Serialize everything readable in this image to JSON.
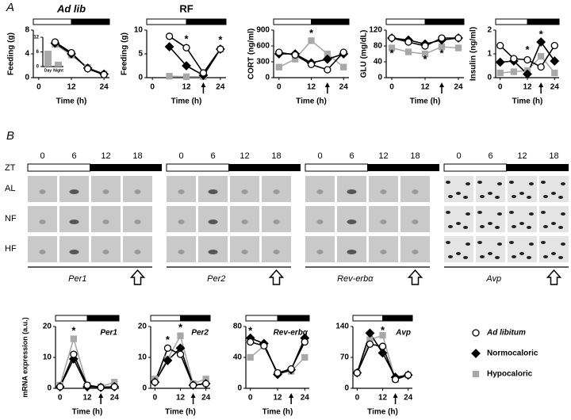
{
  "panel_labels": [
    "A",
    "B"
  ],
  "legend": [
    {
      "name": "Ad libitum",
      "shape": "circle",
      "color": "#ffffff",
      "line": "#000000"
    },
    {
      "name": "Normocaloric",
      "shape": "diamond",
      "color": "#000000",
      "line": "#000000"
    },
    {
      "name": "Hypocaloric",
      "shape": "square",
      "color": "#a8a8a8",
      "line": "#a8a8a8"
    }
  ],
  "micrographs": {
    "zt_label": "ZT",
    "columns": [
      0,
      6,
      12,
      18
    ],
    "rows": [
      "AL",
      "NF",
      "HF"
    ],
    "genes": [
      "Per1",
      "Per2",
      "Rev-erbα",
      "Avp"
    ]
  },
  "chart_data": [
    {
      "type": "line",
      "title": "Ad lib",
      "ylabel": "Feeding (g)",
      "xlabel": "Time (h)",
      "x": [
        6,
        12,
        18,
        24
      ],
      "xlim": [
        -2,
        26
      ],
      "xticks": [
        0,
        12,
        24
      ],
      "ylim": [
        0,
        8
      ],
      "yticks": [
        0,
        4,
        8
      ],
      "light_dark": true,
      "series": [
        {
          "values": [
            6,
            4.2,
            1.5,
            0.5
          ]
        },
        {
          "values": [
            5.8,
            4,
            1.6,
            0.6
          ]
        },
        {
          "values": [
            5.6,
            3.8,
            1.7,
            0.6
          ]
        }
      ]
    },
    {
      "type": "bar",
      "categories": [
        "Day",
        "Night"
      ],
      "values": [
        6.5,
        2
      ],
      "color": "#a8a8a8",
      "ylim": [
        0,
        12
      ],
      "yticks": [
        0,
        6,
        12
      ]
    },
    {
      "type": "line",
      "title": "RF",
      "ylabel": "Feeding (g)",
      "xlabel": "Time (h)",
      "x": [
        6,
        12,
        18,
        24
      ],
      "xlim": [
        -2,
        26
      ],
      "xticks": [
        0,
        12,
        24
      ],
      "ylim": [
        0,
        10
      ],
      "yticks": [
        0,
        5,
        10
      ],
      "light_dark": true,
      "arrow_at": 18,
      "series": [
        {
          "values": [
            8.7,
            6.3,
            1,
            6
          ]
        },
        {
          "values": [
            6.5,
            2.5,
            0.5,
            6
          ]
        },
        {
          "values": [
            0.3,
            0.2,
            0.2,
            6
          ]
        }
      ],
      "annotations": [
        {
          "text": "*",
          "x": 12,
          "y": 8
        },
        {
          "text": "*",
          "x": 24,
          "y": 7.8
        }
      ]
    },
    {
      "type": "line",
      "ylabel": "CORT (ng/ml)",
      "xlabel": "Time (h)",
      "x": [
        0,
        6,
        12,
        18,
        24
      ],
      "xlim": [
        -2,
        26
      ],
      "xticks": [
        0,
        12,
        24
      ],
      "ylim": [
        0,
        900
      ],
      "yticks": [
        0,
        300,
        600,
        900
      ],
      "light_dark": true,
      "arrow_at": 18,
      "series": [
        {
          "values": [
            480,
            430,
            250,
            150,
            480
          ]
        },
        {
          "values": [
            450,
            450,
            280,
            350,
            450
          ]
        },
        {
          "values": [
            200,
            350,
            700,
            450,
            200
          ]
        }
      ],
      "annotations": [
        {
          "text": "*",
          "x": 12,
          "y": 830
        }
      ]
    },
    {
      "type": "line",
      "ylabel": "GLU (mg/dL)",
      "xlabel": "Time (h)",
      "x": [
        0,
        6,
        12,
        18,
        24
      ],
      "xlim": [
        -2,
        26
      ],
      "xticks": [
        0,
        12,
        24
      ],
      "ylim": [
        0,
        120
      ],
      "yticks": [
        0,
        40,
        80,
        120
      ],
      "light_dark": true,
      "arrow_at": 18,
      "series": [
        {
          "values": [
            100,
            90,
            80,
            100,
            100
          ]
        },
        {
          "values": [
            100,
            95,
            85,
            95,
            100
          ]
        },
        {
          "values": [
            75,
            65,
            60,
            78,
            75
          ]
        }
      ],
      "annotations": [
        {
          "text": "*",
          "x": 0,
          "y": 60
        },
        {
          "text": "*",
          "x": 12,
          "y": 45
        },
        {
          "text": "*",
          "x": 18,
          "y": 60
        }
      ]
    },
    {
      "type": "line",
      "ylabel": "Insulin (ng/ml)",
      "xlabel": "Time (h)",
      "x": [
        0,
        6,
        12,
        18,
        24
      ],
      "xlim": [
        -2,
        26
      ],
      "xticks": [
        0,
        12,
        24
      ],
      "ylim": [
        0,
        2
      ],
      "yticks": [
        0,
        1,
        2
      ],
      "light_dark": true,
      "arrow_at": 18,
      "series": [
        {
          "values": [
            1.35,
            0.8,
            0.75,
            0.45,
            1.35
          ]
        },
        {
          "values": [
            0.65,
            0.7,
            0.15,
            1.5,
            0.7
          ]
        },
        {
          "values": [
            0.2,
            0.25,
            0.3,
            0.9,
            0.2
          ]
        }
      ],
      "annotations": [
        {
          "text": "*",
          "x": 12,
          "y": 1.15
        },
        {
          "text": "*",
          "x": 18,
          "y": 1.8
        }
      ]
    },
    {
      "type": "line",
      "title": "Per1",
      "ylabel": "mRNA expression (a.u.)",
      "xlabel": "Time (h)",
      "x": [
        0,
        6,
        12,
        18,
        24
      ],
      "xlim": [
        -2,
        26
      ],
      "xticks": [
        0,
        12,
        24
      ],
      "ylim": [
        0,
        20
      ],
      "yticks": [
        0,
        10,
        20
      ],
      "light_dark": true,
      "arrow_at": 18,
      "series": [
        {
          "values": [
            0.5,
            11,
            1,
            0.3,
            0.5
          ]
        },
        {
          "values": [
            0.5,
            9.5,
            0.5,
            0.3,
            0.5
          ]
        },
        {
          "values": [
            1,
            16,
            1,
            0.5,
            2
          ]
        }
      ],
      "annotations": [
        {
          "text": "*",
          "x": 6,
          "y": 18.5
        }
      ]
    },
    {
      "type": "line",
      "title": "Per2",
      "xlabel": "Time (h)",
      "x": [
        0,
        6,
        12,
        18,
        24
      ],
      "xlim": [
        -2,
        26
      ],
      "xticks": [
        0,
        12,
        24
      ],
      "ylim": [
        0,
        20
      ],
      "yticks": [
        0,
        10,
        20
      ],
      "light_dark": true,
      "arrow_at": 18,
      "series": [
        {
          "values": [
            2,
            13,
            11,
            1,
            1.5
          ]
        },
        {
          "values": [
            2,
            9,
            13,
            1,
            1.5
          ]
        },
        {
          "values": [
            3,
            9.5,
            17,
            1.5,
            3
          ]
        }
      ],
      "annotations": [
        {
          "text": "*",
          "x": 6,
          "y": 15.5
        },
        {
          "text": "*",
          "x": 12,
          "y": 19.5
        }
      ]
    },
    {
      "type": "line",
      "title": "Rev-erbα",
      "xlabel": "Time (h)",
      "x": [
        0,
        6,
        12,
        18,
        24
      ],
      "xlim": [
        -2,
        26
      ],
      "xticks": [
        0,
        12,
        24
      ],
      "ylim": [
        0,
        80
      ],
      "yticks": [
        0,
        40,
        80
      ],
      "light_dark": true,
      "arrow_at": 18,
      "series": [
        {
          "values": [
            60,
            55,
            20,
            25,
            60
          ]
        },
        {
          "values": [
            65,
            58,
            18,
            24,
            65
          ]
        },
        {
          "values": [
            40,
            55,
            20,
            22,
            40
          ]
        }
      ],
      "annotations": [
        {
          "text": "*",
          "x": 0,
          "y": 74
        }
      ]
    },
    {
      "type": "line",
      "title": "Avp",
      "xlabel": "Time (h)",
      "x": [
        0,
        6,
        12,
        18,
        24
      ],
      "xlim": [
        -2,
        26
      ],
      "xticks": [
        0,
        12,
        24
      ],
      "ylim": [
        0,
        140
      ],
      "yticks": [
        0,
        70,
        140
      ],
      "light_dark": true,
      "arrow_at": 18,
      "series": [
        {
          "values": [
            35,
            100,
            95,
            20,
            30
          ]
        },
        {
          "values": [
            35,
            125,
            80,
            25,
            30
          ]
        },
        {
          "values": [
            35,
            110,
            120,
            20,
            30
          ]
        }
      ],
      "annotations": [
        {
          "text": "*",
          "x": 12,
          "y": 130
        }
      ]
    }
  ]
}
